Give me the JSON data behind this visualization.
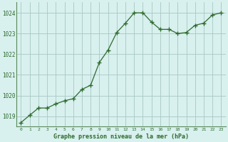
{
  "x": [
    0,
    1,
    2,
    3,
    4,
    5,
    6,
    7,
    8,
    9,
    10,
    11,
    12,
    13,
    14,
    15,
    16,
    17,
    18,
    19,
    20,
    21,
    22,
    23
  ],
  "y": [
    1018.7,
    1019.05,
    1019.4,
    1019.4,
    1019.6,
    1019.75,
    1019.85,
    1020.3,
    1020.5,
    1021.6,
    1022.2,
    1023.05,
    1023.5,
    1024.0,
    1024.0,
    1023.55,
    1023.2,
    1023.2,
    1023.0,
    1023.05,
    1023.4,
    1023.5,
    1023.9,
    1024.0
  ],
  "line_color": "#2d6a2d",
  "marker_color": "#2d6a2d",
  "bg_color": "#d8f0ee",
  "grid_color": "#a8c8c4",
  "xlabel": "Graphe pression niveau de la mer (hPa)",
  "xlabel_color": "#2d6a2d",
  "tick_color": "#2d6a2d",
  "spine_color": "#5a8a5a",
  "ylim_min": 1018.5,
  "ylim_max": 1024.5,
  "yticks": [
    1019,
    1020,
    1021,
    1022,
    1023,
    1024
  ],
  "xticks": [
    0,
    1,
    2,
    3,
    4,
    5,
    6,
    7,
    8,
    9,
    10,
    11,
    12,
    13,
    14,
    15,
    16,
    17,
    18,
    19,
    20,
    21,
    22,
    23
  ]
}
